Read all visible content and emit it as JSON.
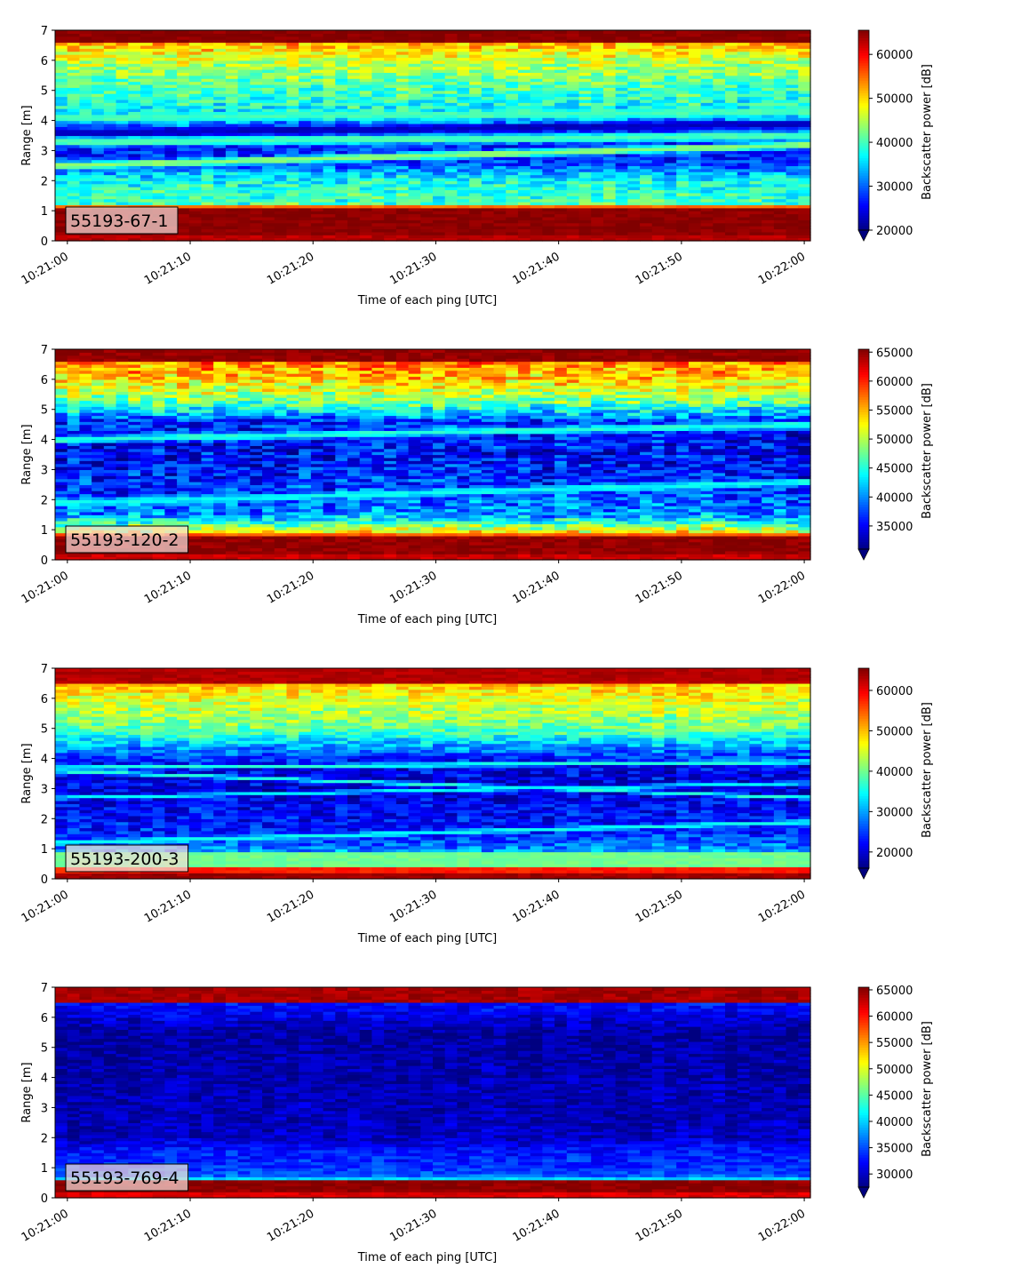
{
  "chart_data": [
    {
      "type": "heatmap",
      "label": "55193-67-1",
      "xlabel": "Time of each ping [UTC]",
      "ylabel": "Range [m]",
      "xticks": [
        "10:21:00",
        "10:21:10",
        "10:21:20",
        "10:21:30",
        "10:21:40",
        "10:21:50",
        "10:22:00"
      ],
      "xlim_seconds": [
        -1,
        60.5
      ],
      "ylim": [
        0,
        7
      ],
      "yticks": [
        0,
        1,
        2,
        3,
        4,
        5,
        6,
        7
      ],
      "colormap": "jet",
      "colorbar": {
        "label": "Backscatter power [dB]",
        "min": 20000,
        "max": 65500,
        "ticks": [
          20000,
          30000,
          40000,
          50000,
          60000
        ],
        "extend": "min"
      },
      "bands": [
        {
          "y0": 0.0,
          "y1": 0.2,
          "value": 63000
        },
        {
          "y0": 0.2,
          "y1": 1.1,
          "value": 65000
        },
        {
          "y0": 1.1,
          "y1": 1.25,
          "value": 55000
        },
        {
          "y0": 6.6,
          "y1": 7.0,
          "value": 65000
        }
      ],
      "background_profile": [
        [
          1.25,
          40000
        ],
        [
          2.0,
          38000
        ],
        [
          2.6,
          28000
        ],
        [
          3.5,
          27000
        ],
        [
          4.5,
          38000
        ],
        [
          5.2,
          41000
        ],
        [
          6.0,
          46000
        ],
        [
          6.6,
          52000
        ]
      ],
      "features": [
        {
          "y0": 4.1,
          "y1": 4.3,
          "value": 40000,
          "w": 0.18
        },
        {
          "y0": 3.6,
          "y1": 3.9,
          "value": 23000,
          "w": 0.18
        },
        {
          "y0": 3.3,
          "y1": 3.5,
          "value": 40000,
          "w": 0.2
        },
        {
          "y0": 2.5,
          "y1": 3.2,
          "value": 43000,
          "w": 0.16
        }
      ],
      "noise": 4500,
      "seed": 11
    },
    {
      "type": "heatmap",
      "label": "55193-120-2",
      "xlabel": "Time of each ping [UTC]",
      "ylabel": "Range [m]",
      "xticks": [
        "10:21:00",
        "10:21:10",
        "10:21:20",
        "10:21:30",
        "10:21:40",
        "10:21:50",
        "10:22:00"
      ],
      "xlim_seconds": [
        -1,
        60.5
      ],
      "ylim": [
        0,
        7
      ],
      "yticks": [
        0,
        1,
        2,
        3,
        4,
        5,
        6,
        7
      ],
      "colormap": "jet",
      "colorbar": {
        "label": "Backscatter power [dB]",
        "min": 31000,
        "max": 65500,
        "ticks": [
          35000,
          40000,
          45000,
          50000,
          55000,
          60000,
          65000
        ],
        "extend": "min"
      },
      "bands": [
        {
          "y0": 0.0,
          "y1": 0.2,
          "value": 63000
        },
        {
          "y0": 0.2,
          "y1": 0.8,
          "value": 65000
        },
        {
          "y0": 0.8,
          "y1": 0.95,
          "value": 58000
        },
        {
          "y0": 6.6,
          "y1": 7.0,
          "value": 65000
        }
      ],
      "background_profile": [
        [
          0.95,
          52000
        ],
        [
          1.5,
          40000
        ],
        [
          2.5,
          37000
        ],
        [
          3.5,
          35000
        ],
        [
          4.6,
          37000
        ],
        [
          5.2,
          47000
        ],
        [
          6.0,
          54000
        ],
        [
          6.6,
          57000
        ]
      ],
      "features": [
        {
          "y0": 4.0,
          "y1": 4.5,
          "value": 45000,
          "w": 0.15
        },
        {
          "y0": 1.9,
          "y1": 2.6,
          "value": 44000,
          "w": 0.15
        }
      ],
      "noise": 4200,
      "seed": 23
    },
    {
      "type": "heatmap",
      "label": "55193-200-3",
      "xlabel": "Time of each ping [UTC]",
      "ylabel": "Range [m]",
      "xticks": [
        "10:21:00",
        "10:21:10",
        "10:21:20",
        "10:21:30",
        "10:21:40",
        "10:21:50",
        "10:22:00"
      ],
      "xlim_seconds": [
        -1,
        60.5
      ],
      "ylim": [
        0,
        7
      ],
      "yticks": [
        0,
        1,
        2,
        3,
        4,
        5,
        6,
        7
      ],
      "colormap": "jet",
      "colorbar": {
        "label": "Backscatter power [dB]",
        "min": 16000,
        "max": 65500,
        "ticks": [
          20000,
          30000,
          40000,
          50000,
          60000
        ],
        "extend": "min"
      },
      "bands": [
        {
          "y0": 0.0,
          "y1": 0.2,
          "value": 64000
        },
        {
          "y0": 0.2,
          "y1": 0.4,
          "value": 58000
        },
        {
          "y0": 0.4,
          "y1": 0.9,
          "value": 40000
        },
        {
          "y0": 6.5,
          "y1": 7.0,
          "value": 63000
        }
      ],
      "background_profile": [
        [
          0.9,
          30000
        ],
        [
          1.5,
          24000
        ],
        [
          3.0,
          21000
        ],
        [
          3.8,
          22000
        ],
        [
          4.4,
          30000
        ],
        [
          5.0,
          40000
        ],
        [
          6.0,
          46000
        ],
        [
          6.5,
          50000
        ]
      ],
      "features": [
        {
          "y0": 3.7,
          "y1": 3.9,
          "value": 36000,
          "w": 0.09
        },
        {
          "y0": 3.6,
          "y1": 2.7,
          "value": 36000,
          "w": 0.08
        },
        {
          "y0": 2.7,
          "y1": 3.2,
          "value": 34000,
          "w": 0.08
        },
        {
          "y0": 1.2,
          "y1": 1.9,
          "value": 35000,
          "w": 0.1
        }
      ],
      "noise": 4500,
      "seed": 37
    },
    {
      "type": "heatmap",
      "label": "55193-769-4",
      "xlabel": "Time of each ping [UTC]",
      "ylabel": "Range [m]",
      "xticks": [
        "10:21:00",
        "10:21:10",
        "10:21:20",
        "10:21:30",
        "10:21:40",
        "10:21:50",
        "10:22:00"
      ],
      "xlim_seconds": [
        -1,
        60.5
      ],
      "ylim": [
        0,
        7
      ],
      "yticks": [
        0,
        1,
        2,
        3,
        4,
        5,
        6,
        7
      ],
      "colormap": "jet",
      "colorbar": {
        "label": "Backscatter power [dB]",
        "min": 27500,
        "max": 65500,
        "ticks": [
          30000,
          35000,
          40000,
          45000,
          50000,
          55000,
          60000,
          65000
        ],
        "extend": "min"
      },
      "bands": [
        {
          "y0": 0.0,
          "y1": 0.2,
          "value": 62000
        },
        {
          "y0": 0.2,
          "y1": 0.6,
          "value": 65000
        },
        {
          "y0": 0.6,
          "y1": 0.7,
          "value": 40000
        },
        {
          "y0": 6.55,
          "y1": 7.0,
          "value": 64000
        }
      ],
      "background_profile": [
        [
          0.7,
          36000
        ],
        [
          1.0,
          34000
        ],
        [
          1.6,
          33000
        ],
        [
          2.0,
          30000
        ],
        [
          5.5,
          28500
        ],
        [
          6.0,
          31000
        ],
        [
          6.55,
          33000
        ]
      ],
      "features": [],
      "noise": 2200,
      "seed": 51
    }
  ]
}
